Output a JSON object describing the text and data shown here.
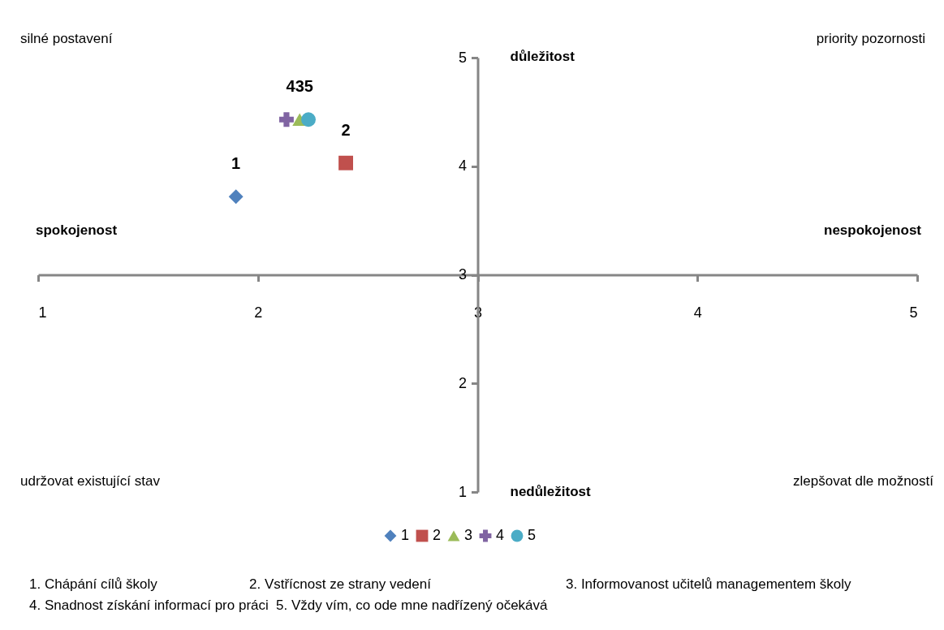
{
  "chart_data": {
    "type": "scatter",
    "xlim": [
      1,
      5
    ],
    "ylim": [
      1,
      5
    ],
    "xticks": [
      1,
      2,
      3,
      4,
      5
    ],
    "yticks": [
      1,
      2,
      3,
      4,
      5
    ],
    "grid": false,
    "legend": "bottom",
    "series": [
      {
        "name": "1",
        "color": "#4f81bd",
        "marker": "diamond",
        "x": [
          1.9
        ],
        "values": [
          3.72
        ]
      },
      {
        "name": "2",
        "color": "#c0504d",
        "marker": "square",
        "x": [
          2.4
        ],
        "values": [
          4.03
        ]
      },
      {
        "name": "3",
        "color": "#9bbb59",
        "marker": "triangle",
        "x": [
          2.19
        ],
        "values": [
          4.43
        ]
      },
      {
        "name": "4",
        "color": "#8064a2",
        "marker": "cross",
        "x": [
          2.13
        ],
        "values": [
          4.43
        ]
      },
      {
        "name": "5",
        "color": "#4bacc6",
        "marker": "circle",
        "x": [
          2.23
        ],
        "values": [
          4.43
        ]
      }
    ],
    "annotations": [
      "silné postavení",
      "priority pozornosti",
      "udržovat existující stav",
      "zlepšovat dle možností",
      "důležitost",
      "nedůležitost",
      "spokojenost",
      "nespokojenost",
      "1. Chápání cílů školy",
      "2. Vstřícnost ze strany vedení",
      "3. Informovanost učitelů managementem školy",
      "4. Snadnost získání informací pro práci",
      "5. Vždy vím, co ode mne nadřízený očekává",
      {
        "text": "1",
        "x": 1.9,
        "y": 3.72
      },
      {
        "text": "2",
        "x": 2.4,
        "y": 4.03
      },
      {
        "text": "435",
        "x": 2.19,
        "y": 4.43
      }
    ]
  }
}
